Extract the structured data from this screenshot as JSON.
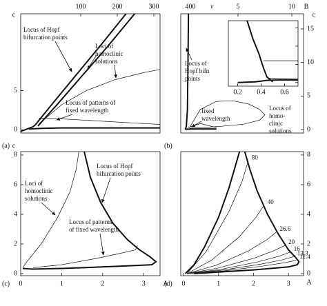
{
  "chart_data": [
    {
      "type": "line",
      "panel": "(a)",
      "xlim": [
        0,
        3.4
      ],
      "ylim": [
        -0.4,
        14.8
      ],
      "yticks": [
        0,
        5
      ],
      "ylabel": "c",
      "x2label": "ν",
      "x2lim": [
        -64,
        317
      ],
      "x2ticks": [
        100,
        200,
        300,
        400
      ],
      "series": [
        {
          "style": "bold",
          "x": [
            0.35,
            0.8,
            1.4,
            2.0,
            2.57
          ],
          "values": [
            0.6,
            3.5,
            7.3,
            11.1,
            14.8
          ]
        },
        {
          "style": "bold",
          "x": [
            0.42,
            0.9,
            1.5,
            2.1,
            2.78
          ],
          "values": [
            0.5,
            3.3,
            6.9,
            10.5,
            14.8
          ]
        },
        {
          "style": "thin",
          "x": [
            0.45,
            1.0,
            1.6,
            2.3,
            3.0,
            3.4
          ],
          "values": [
            0.8,
            3.2,
            5.0,
            6.4,
            7.3,
            7.7
          ]
        },
        {
          "style": "bold",
          "x": [
            0.0,
            0.15,
            0.3,
            0.35
          ],
          "values": [
            -0.2,
            0.1,
            0.4,
            0.6
          ]
        },
        {
          "style": "bold",
          "x": [
            0.2,
            0.5,
            1.0,
            2.0,
            3.0,
            3.4
          ],
          "values": [
            0.1,
            0.2,
            0.25,
            0.25,
            0.25,
            0.25
          ]
        },
        {
          "style": "thin",
          "x": [
            0.45,
            1.0,
            2.0,
            3.0,
            3.4
          ],
          "values": [
            1.5,
            1.4,
            1.1,
            0.8,
            0.7
          ]
        }
      ],
      "annotations": [
        [
          "Locus of Hopf",
          "bifurcation points"
        ],
        [
          "Loci of",
          "homoclinic",
          "solutions"
        ],
        [
          "Locus of patterns of",
          "fixed wavelength"
        ]
      ]
    },
    {
      "type": "line",
      "panel": "(b)",
      "xlim": [
        -0.32,
        11.09
      ],
      "ylim": [
        -0.51,
        17.26
      ],
      "xticks": [
        5,
        10
      ],
      "xlabel": "B",
      "yticks": [
        0,
        5,
        10,
        15
      ],
      "ylabel": "c",
      "series": [
        {
          "style": "bold",
          "x": [
            0.1,
            0.2,
            0.3,
            0.35,
            0.4
          ],
          "values": [
            0,
            0.5,
            3,
            10,
            17.26
          ]
        },
        {
          "style": "bold",
          "x": [
            0.1,
            1,
            3
          ],
          "values": [
            0.05,
            0.1,
            0.1
          ]
        },
        {
          "style": "thin",
          "x": [
            0.5,
            1.5,
            3,
            4.5,
            6,
            7,
            7.5,
            7,
            5.5,
            3.5,
            1.5,
            0.5
          ],
          "values": [
            0.3,
            3.0,
            4.2,
            4.3,
            3.8,
            3.0,
            2.2,
            1.4,
            0.8,
            0.5,
            0.3,
            0.2
          ]
        },
        {
          "style": "thin",
          "x": [
            0.3,
            1.5,
            3.0
          ],
          "values": [
            0.3,
            0.9,
            0.3
          ]
        }
      ],
      "annotations": [
        [
          "Locus of",
          "Hopf bifn",
          "points"
        ],
        [
          "fixed",
          "wavelength"
        ],
        [
          "Locus of",
          "homo-",
          "clinic",
          "solutions"
        ]
      ]
    },
    {
      "type": "line",
      "panel": "(c)",
      "xlim": [
        0,
        3.4
      ],
      "ylim": [
        -0.14,
        8.23
      ],
      "xticks": [
        0,
        1,
        2,
        3
      ],
      "xlabel": "A",
      "yticks": [
        0,
        2,
        4,
        6,
        8
      ],
      "ylabel": "c",
      "series": [
        {
          "style": "thin",
          "x": [
            1.42,
            1.35,
            1.2,
            0.9,
            0.5,
            0.15,
            0.05
          ],
          "values": [
            8.23,
            7.0,
            5.5,
            3.8,
            2.0,
            0.8,
            0.4
          ]
        },
        {
          "style": "bold",
          "x": [
            1.55,
            1.7,
            1.95,
            2.25,
            2.6,
            2.9,
            3.15,
            3.3,
            3.2,
            2.8,
            2.0,
            1.0,
            0.3,
            0.05
          ],
          "values": [
            8.23,
            6.5,
            4.8,
            3.4,
            2.3,
            1.6,
            1.15,
            0.8,
            0.6,
            0.55,
            0.45,
            0.35,
            0.3,
            0.35
          ]
        },
        {
          "style": "thin",
          "x": [
            0.3,
            1.0,
            1.8,
            2.4,
            2.8,
            2.85
          ],
          "values": [
            0.4,
            0.6,
            1.0,
            1.35,
            1.6,
            1.9
          ]
        }
      ],
      "annotations": [
        [
          "Loci of",
          "homoclinic",
          "solutions"
        ],
        [
          "Locus of Hopf",
          "bifurcation points"
        ],
        [
          "Locus of patterns",
          "of fixed wavelength"
        ]
      ]
    },
    {
      "type": "line",
      "panel": "(d)",
      "xlim": [
        -0.08,
        3.43
      ],
      "ylim": [
        -0.14,
        8.23
      ],
      "xticks": [
        0,
        1,
        2,
        3
      ],
      "xlabel": "A",
      "yticks": [
        0,
        2,
        4,
        6,
        8
      ],
      "series": [
        {
          "style": "bold",
          "x": [
            0.05,
            0.3,
            0.6,
            1.0,
            1.3,
            1.6
          ],
          "values": [
            0,
            0.6,
            1.8,
            3.8,
            5.8,
            8.23
          ]
        },
        {
          "style": "bold",
          "x": [
            1.75,
            1.9,
            2.1,
            2.4,
            2.7,
            3.0,
            3.2,
            3.3,
            3.25,
            3.0,
            2.0,
            1.0,
            0.3
          ],
          "values": [
            8.23,
            7.0,
            5.6,
            4.0,
            2.7,
            1.6,
            1.1,
            0.8,
            0.6,
            0.45,
            0.25,
            0.1,
            0
          ]
        },
        {
          "style": "thin",
          "label": 80,
          "x": [
            0.1,
            0.65,
            1.3,
            1.67,
            1.85
          ],
          "values": [
            0,
            1.5,
            4.2,
            6.2,
            7.6
          ]
        },
        {
          "style": "thin",
          "label": 40,
          "x": [
            0.1,
            0.8,
            1.6,
            2.07,
            2.3
          ],
          "values": [
            0,
            0.9,
            2.5,
            3.8,
            4.6
          ]
        },
        {
          "style": "thin",
          "label": 26.6,
          "x": [
            0.1,
            0.93,
            1.86,
            2.39,
            2.65
          ],
          "values": [
            0,
            0.56,
            1.54,
            2.3,
            2.8
          ]
        },
        {
          "style": "thin",
          "label": 20,
          "x": [
            0.1,
            1.0,
            2.03,
            2.6,
            2.9
          ],
          "values": [
            0,
            0.38,
            1.05,
            1.56,
            1.9
          ]
        },
        {
          "style": "thin",
          "label": 16,
          "x": [
            0.1,
            1.07,
            2.14,
            2.75,
            3.05
          ],
          "values": [
            0,
            0.29,
            0.8,
            1.19,
            1.45
          ]
        },
        {
          "style": "thin",
          "label": 13.3,
          "x": [
            0.1,
            1.1,
            2.2,
            2.84,
            3.15
          ],
          "values": [
            0,
            0.23,
            0.63,
            0.94,
            1.15
          ]
        },
        {
          "style": "thin",
          "label": 11.4,
          "x": [
            0.1,
            1.13,
            2.25,
            2.9,
            3.22
          ],
          "values": [
            0,
            0.18,
            0.5,
            0.74,
            0.9
          ]
        }
      ]
    },
    {
      "type": "line",
      "xlim": [
        0.12,
        0.715
      ],
      "ylim": [
        -1,
        17
      ],
      "xticks": [
        0.2,
        0.4,
        0.6
      ],
      "yticks": [
        0,
        5,
        10,
        15
      ],
      "series": [
        {
          "style": "bold",
          "x": [
            0.28,
            0.33,
            0.38,
            0.42,
            0.45,
            0.5
          ],
          "values": [
            17,
            12,
            8,
            4,
            1.5,
            0.2
          ]
        },
        {
          "style": "thin",
          "x": [
            0.42,
            0.715
          ],
          "values": [
            6,
            6
          ]
        },
        {
          "style": "thin",
          "x": [
            0.46,
            0.715
          ],
          "values": [
            1.2,
            1.0
          ]
        },
        {
          "style": "bold",
          "x": [
            0.2,
            0.35,
            0.45,
            0.55,
            0.715
          ],
          "values": [
            0,
            0.2,
            0.6,
            0.7,
            0.7
          ]
        }
      ]
    }
  ]
}
